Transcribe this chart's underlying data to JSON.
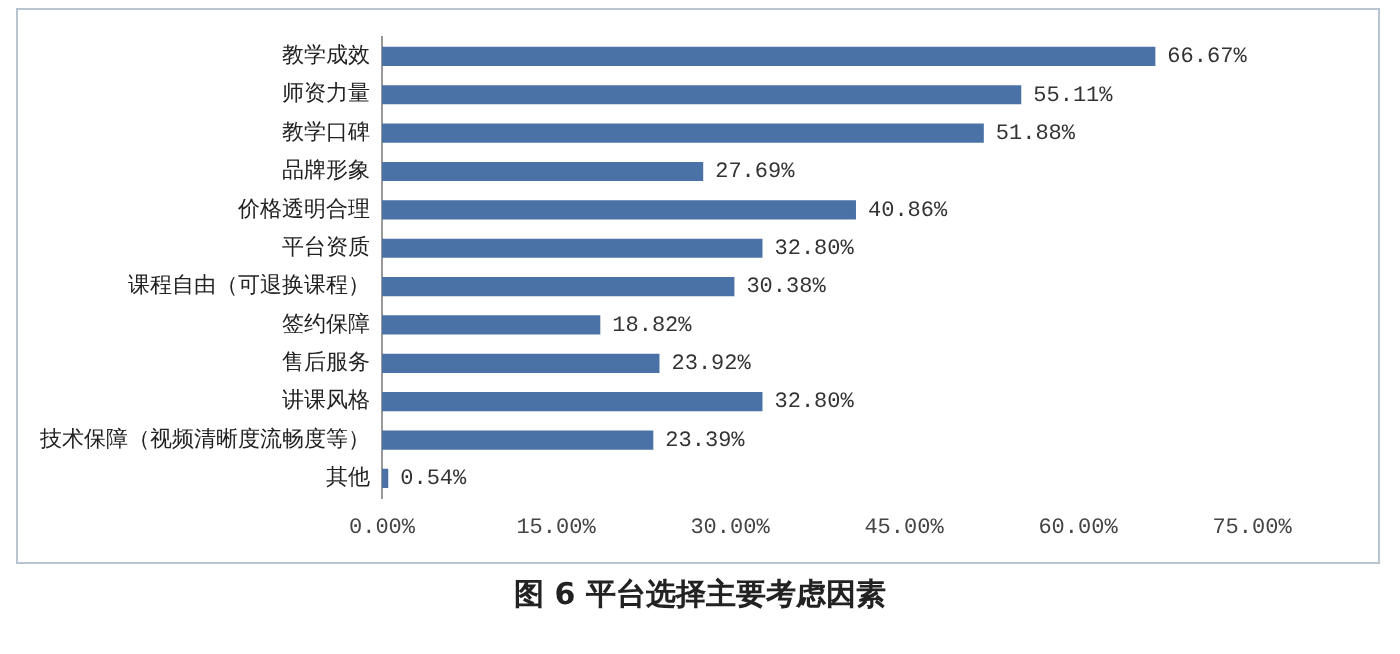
{
  "chart_data": {
    "type": "bar",
    "orientation": "horizontal",
    "title": "图 6 平台选择主要考虑因素",
    "categories": [
      "教学成效",
      "师资力量",
      "教学口碑",
      "品牌形象",
      "价格透明合理",
      "平台资质",
      "课程自由（可退换课程）",
      "签约保障",
      "售后服务",
      "讲课风格",
      "技术保障（视频清晰度流畅度等）",
      "其他"
    ],
    "values": [
      66.67,
      55.11,
      51.88,
      27.69,
      40.86,
      32.8,
      30.38,
      18.82,
      23.92,
      32.8,
      23.39,
      0.54
    ],
    "value_labels": [
      "66.67%",
      "55.11%",
      "51.88%",
      "27.69%",
      "40.86%",
      "32.80%",
      "30.38%",
      "18.82%",
      "23.92%",
      "32.80%",
      "23.39%",
      "0.54%"
    ],
    "color": "#4a72a6",
    "xlim": [
      0,
      75
    ],
    "xticks": [
      {
        "value": 0,
        "label": "0.00%"
      },
      {
        "value": 15,
        "label": "15.00%"
      },
      {
        "value": 30,
        "label": "30.00%"
      },
      {
        "value": 45,
        "label": "45.00%"
      },
      {
        "value": 60,
        "label": "60.00%"
      },
      {
        "value": 75,
        "label": "75.00%"
      }
    ],
    "grid": false,
    "legend": false
  }
}
